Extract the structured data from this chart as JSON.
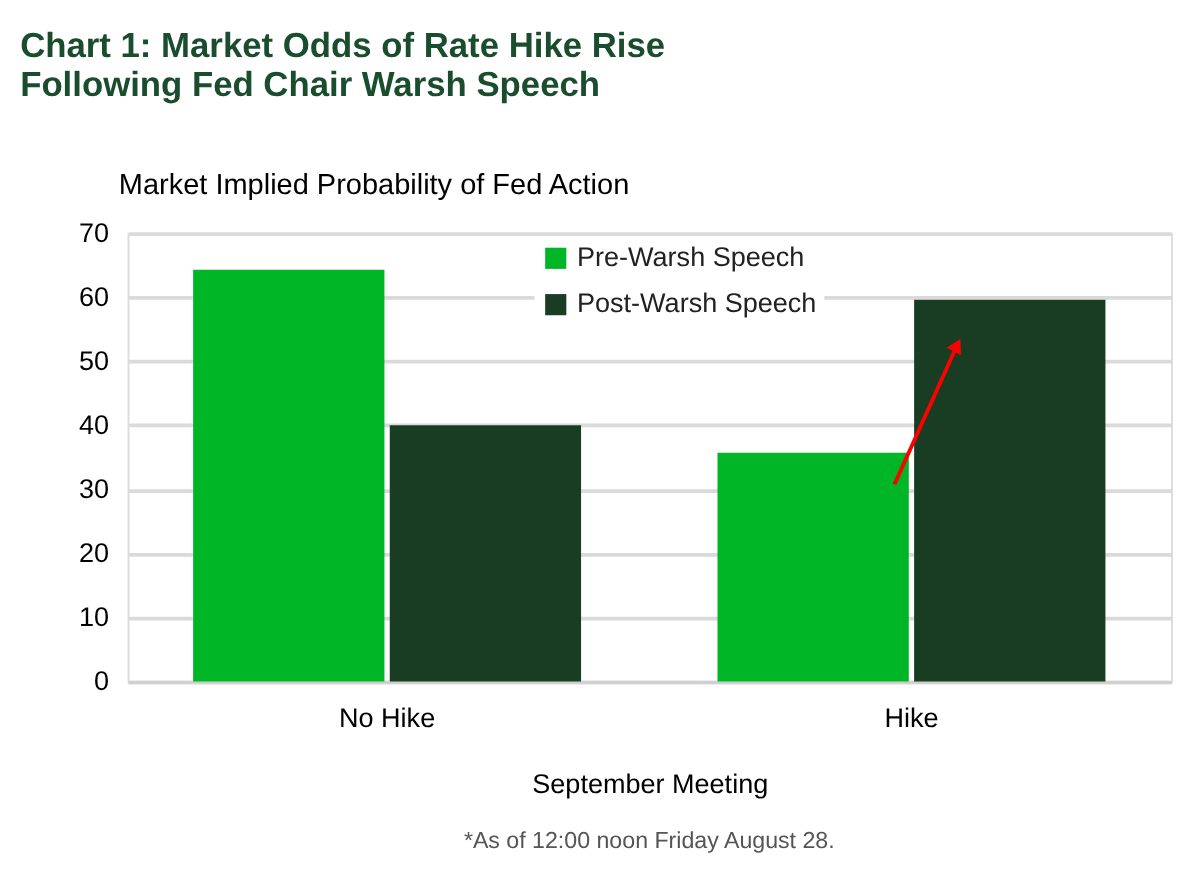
{
  "chart_data": {
    "type": "bar",
    "title": [
      "Chart 1: Market Odds of Rate Hike Rise",
      "Following Fed Chair Warsh Speech"
    ],
    "ylabel": "Market Implied Probability of Fed Action",
    "xlabel": "September Meeting",
    "categories": [
      "No Hike",
      "Hike"
    ],
    "series": [
      {
        "name": "Pre-Warsh Speech",
        "color": "#00b526",
        "values": [
          64.3,
          35.7
        ]
      },
      {
        "name": "Post-Warsh Speech",
        "color": "#183d22",
        "values": [
          40.0,
          59.6
        ]
      }
    ],
    "ylim": [
      0,
      70
    ],
    "yticks": [
      0,
      10,
      20,
      30,
      40,
      50,
      60,
      70
    ],
    "grid": "y",
    "legend": "top",
    "annotations": [
      "*As of 12:00 noon Friday August 28."
    ]
  }
}
